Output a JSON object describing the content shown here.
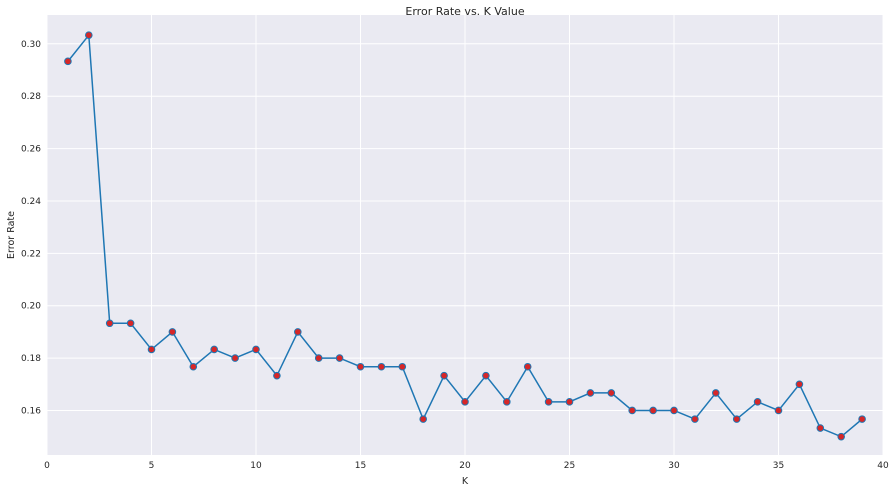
{
  "chart_data": {
    "type": "line",
    "title": "Error Rate vs. K Value",
    "xlabel": "K",
    "ylabel": "Error Rate",
    "xlim": [
      0,
      40
    ],
    "ylim": [
      0.143,
      0.311
    ],
    "xticks": [
      0,
      5,
      10,
      15,
      20,
      25,
      30,
      35,
      40
    ],
    "yticks": [
      0.16,
      0.18,
      0.2,
      0.22,
      0.24,
      0.26,
      0.28,
      0.3
    ],
    "ytick_labels": [
      "0.16",
      "0.18",
      "0.20",
      "0.22",
      "0.24",
      "0.26",
      "0.28",
      "0.30"
    ],
    "grid": true,
    "colors": {
      "background": "#eaeaf2",
      "grid": "#ffffff",
      "line": "#1f77b4",
      "marker": "#d62728"
    },
    "series": [
      {
        "x": [
          1,
          2,
          3,
          4,
          5,
          6,
          7,
          8,
          9,
          10,
          11,
          12,
          13,
          14,
          15,
          16,
          17,
          18,
          19,
          20,
          21,
          22,
          23,
          24,
          25,
          26,
          27,
          28,
          29,
          30,
          31,
          32,
          33,
          34,
          35,
          36,
          37,
          38,
          39
        ],
        "values": [
          0.2933,
          0.3033,
          0.1933,
          0.1933,
          0.1833,
          0.19,
          0.1767,
          0.1833,
          0.18,
          0.1833,
          0.1733,
          0.19,
          0.18,
          0.18,
          0.1767,
          0.1767,
          0.1767,
          0.1567,
          0.1733,
          0.1633,
          0.1733,
          0.1633,
          0.1767,
          0.1633,
          0.1633,
          0.1667,
          0.1667,
          0.16,
          0.16,
          0.16,
          0.1567,
          0.1667,
          0.1567,
          0.1633,
          0.16,
          0.17,
          0.1533,
          0.15,
          0.1567
        ]
      }
    ]
  }
}
